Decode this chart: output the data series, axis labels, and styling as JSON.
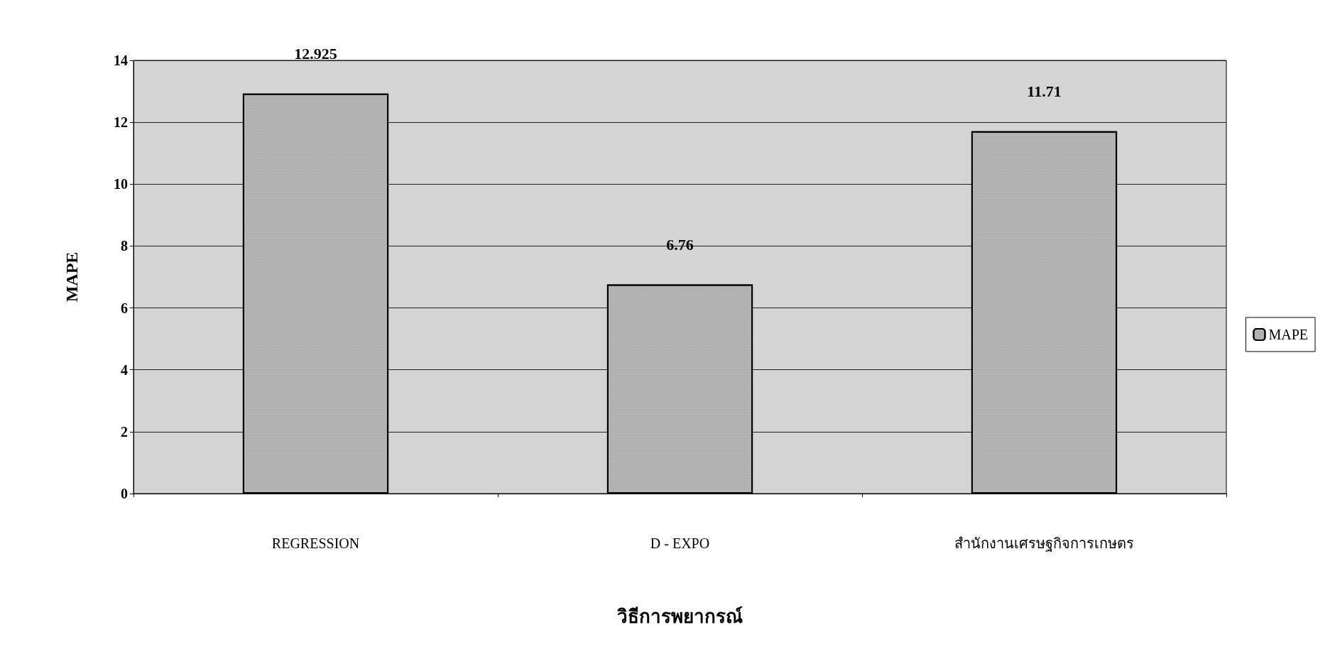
{
  "chart_data": {
    "type": "bar",
    "xlabel": "วิธีการพยากรณ์",
    "ylabel": "MAPE",
    "categories": [
      "REGRESSION",
      "D - EXPO",
      "สำนักงานเศรษฐกิจการเกษตร"
    ],
    "series": [
      {
        "name": "MAPE",
        "color": "#b4b4b4",
        "values": [
          12.925,
          6.76,
          11.71
        ]
      }
    ],
    "ylim": [
      0,
      14
    ],
    "yticks": [
      0,
      2,
      4,
      6,
      8,
      10,
      12,
      14
    ],
    "grid": "y",
    "legend": "right",
    "data_labels": true
  }
}
